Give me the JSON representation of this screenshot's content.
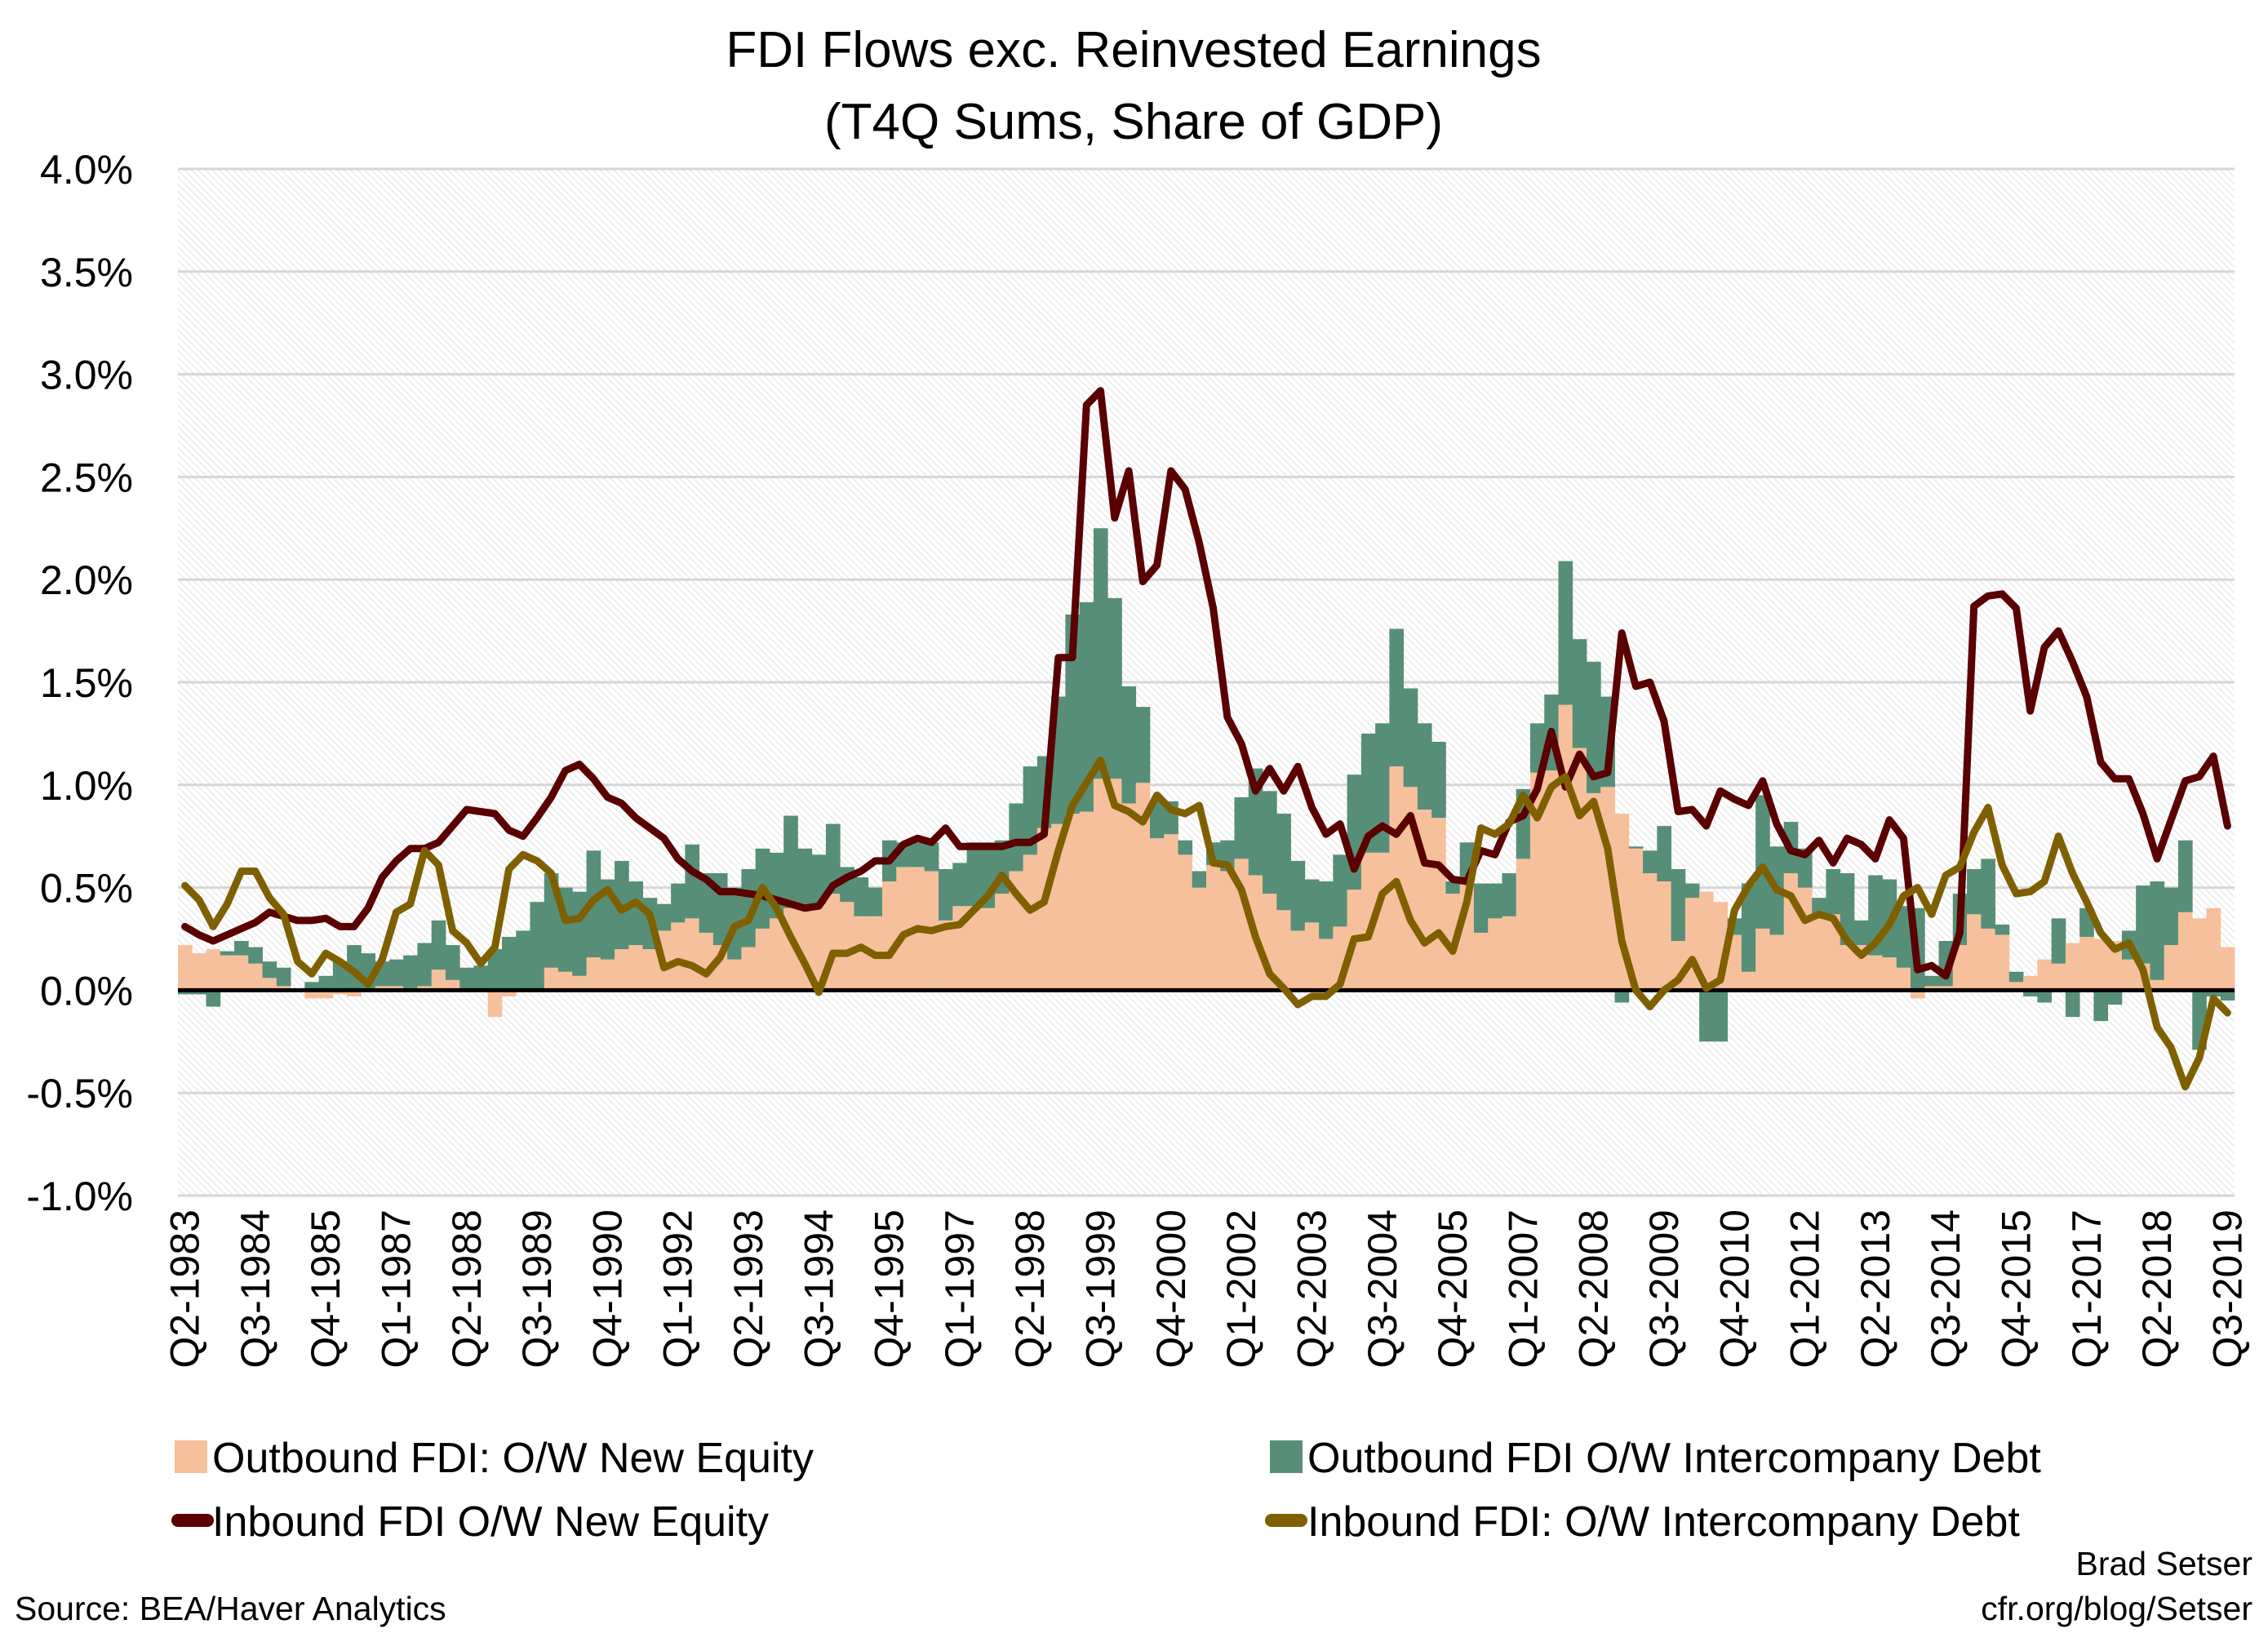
{
  "chart_data": {
    "type": "bar",
    "title": "FDI Flows exc. Reinvested Earnings",
    "subtitle": "(T4Q Sums, Share of GDP)",
    "xlabel": "",
    "ylabel": "",
    "ylim": [
      -1.0,
      4.0
    ],
    "y_unit": "%",
    "y_ticks": [
      "4.0%",
      "3.5%",
      "3.0%",
      "2.5%",
      "2.0%",
      "1.5%",
      "1.0%",
      "0.5%",
      "0.0%",
      "-0.5%",
      "-1.0%"
    ],
    "y_tick_values": [
      4.0,
      3.5,
      3.0,
      2.5,
      2.0,
      1.5,
      1.0,
      0.5,
      0.0,
      -0.5,
      -1.0
    ],
    "grid": true,
    "legend_position": "bottom",
    "x_start": "Q2-1983",
    "x_end": "Q3-2019",
    "x_frequency": "quarterly",
    "x_tick_labels": [
      "Q2-1983",
      "Q3-1984",
      "Q4-1985",
      "Q1-1987",
      "Q2-1988",
      "Q3-1989",
      "Q4-1990",
      "Q1-1992",
      "Q2-1993",
      "Q3-1994",
      "Q4-1995",
      "Q1-1997",
      "Q2-1998",
      "Q3-1999",
      "Q4-2000",
      "Q1-2002",
      "Q2-2003",
      "Q3-2004",
      "Q4-2005",
      "Q1-2007",
      "Q2-2008",
      "Q3-2009",
      "Q4-2010",
      "Q1-2012",
      "Q2-2013",
      "Q3-2014",
      "Q4-2015",
      "Q1-2017",
      "Q2-2018",
      "Q3-2019"
    ],
    "series": [
      {
        "name": "Outbound FDI: O/W New Equity",
        "kind": "stacked-bar",
        "color": "#F7C09C",
        "values": [
          0.22,
          0.18,
          0.2,
          0.17,
          0.17,
          0.13,
          0.06,
          0.02,
          0,
          -0.04,
          -0.04,
          -0.02,
          -0.03,
          0,
          0.02,
          0.02,
          0.01,
          0.02,
          0.1,
          0.05,
          0,
          0,
          -0.13,
          -0.03,
          0,
          0,
          0.11,
          0.09,
          0.07,
          0.16,
          0.15,
          0.2,
          0.22,
          0.2,
          0.29,
          0.33,
          0.35,
          0.28,
          0.22,
          0.15,
          0.21,
          0.3,
          0.35,
          0.4,
          0.4,
          0.42,
          0.47,
          0.43,
          0.36,
          0.36,
          0.53,
          0.6,
          0.6,
          0.58,
          0.34,
          0.41,
          0.41,
          0.4,
          0.47,
          0.58,
          0.66,
          0.79,
          0.81,
          0.86,
          0.87,
          1.03,
          1.03,
          0.91,
          1.01,
          0.74,
          0.76,
          0.66,
          0.5,
          0.61,
          0.58,
          0.64,
          0.56,
          0.47,
          0.39,
          0.29,
          0.33,
          0.25,
          0.31,
          0.49,
          0.67,
          0.67,
          1.09,
          0.99,
          0.88,
          0.84,
          0.47,
          0.53,
          0.28,
          0.35,
          0.36,
          0.64,
          1.06,
          1.07,
          1.39,
          1.18,
          0.96,
          0.99,
          0.86,
          0.69,
          0.57,
          0.53,
          0.24,
          0.45,
          0.48,
          0.43,
          0.27,
          0.09,
          0.3,
          0.27,
          0.57,
          0.5,
          0.37,
          0.37,
          0.22,
          0.22,
          0.17,
          0.16,
          0.11,
          -0.04,
          0.02,
          0.02,
          0.22,
          0.37,
          0.3,
          0.27,
          0.04,
          0.07,
          0.15,
          0.13,
          0.23,
          0.26,
          0.25,
          0.24,
          0.15,
          0.13,
          0.05,
          0.22,
          0.38,
          0.35,
          0.4,
          0.21
        ]
      },
      {
        "name": "Outbound FDI O/W Intercompany Debt",
        "kind": "stacked-bar",
        "color": "#578E78",
        "values": [
          -0.02,
          -0.02,
          -0.08,
          0.02,
          0.07,
          0.08,
          0.08,
          0.09,
          0,
          0.04,
          0.07,
          0.14,
          0.22,
          0.18,
          0.12,
          0.13,
          0.16,
          0.21,
          0.24,
          0.17,
          0.11,
          0.12,
          0.2,
          0.26,
          0.29,
          0.43,
          0.46,
          0.41,
          0.41,
          0.52,
          0.39,
          0.43,
          0.31,
          0.25,
          0.13,
          0.19,
          0.36,
          0.29,
          0.35,
          0.35,
          0.38,
          0.39,
          0.32,
          0.45,
          0.29,
          0.24,
          0.34,
          0.17,
          0.19,
          0.14,
          0.2,
          0.12,
          0.12,
          0.14,
          0.25,
          0.21,
          0.31,
          0.32,
          0.26,
          0.33,
          0.43,
          0.35,
          0.62,
          0.97,
          1.02,
          1.22,
          0.88,
          0.57,
          0.37,
          0.18,
          0.16,
          0.07,
          0.08,
          0.11,
          0.15,
          0.3,
          0.52,
          0.5,
          0.47,
          0.34,
          0.21,
          0.28,
          0.35,
          0.56,
          0.58,
          0.63,
          0.67,
          0.48,
          0.42,
          0.37,
          0.06,
          0.19,
          0.24,
          0.17,
          0.21,
          0.34,
          0.24,
          0.37,
          0.7,
          0.53,
          0.64,
          0.44,
          -0.06,
          0.01,
          0.11,
          0.27,
          0.35,
          0.07,
          -0.25,
          -0.25,
          0.08,
          0.43,
          0.65,
          0.43,
          0.25,
          0.19,
          0.08,
          0.22,
          0.35,
          0.12,
          0.39,
          0.38,
          0.3,
          0.4,
          0.05,
          0.22,
          0.25,
          0.22,
          0.34,
          0.05,
          0.05,
          -0.03,
          -0.06,
          0.22,
          -0.13,
          0.14,
          -0.15,
          -0.07,
          0.14,
          0.38,
          0.48,
          0.28,
          0.35,
          -0.29,
          -0.03,
          -0.05
        ]
      },
      {
        "name": "Inbound FDI O/W New Equity",
        "kind": "line",
        "color": "#5A0000",
        "values": [
          0.31,
          0.27,
          0.24,
          0.27,
          0.3,
          0.33,
          0.38,
          0.36,
          0.34,
          0.34,
          0.35,
          0.31,
          0.31,
          0.4,
          0.55,
          0.63,
          0.69,
          0.69,
          0.72,
          0.8,
          0.88,
          0.87,
          0.86,
          0.78,
          0.75,
          0.84,
          0.94,
          1.07,
          1.1,
          1.03,
          0.94,
          0.91,
          0.84,
          0.79,
          0.74,
          0.64,
          0.58,
          0.54,
          0.48,
          0.48,
          0.47,
          0.46,
          0.44,
          0.42,
          0.4,
          0.41,
          0.51,
          0.55,
          0.58,
          0.63,
          0.63,
          0.71,
          0.74,
          0.72,
          0.79,
          0.7,
          0.7,
          0.7,
          0.7,
          0.72,
          0.72,
          0.76,
          1.62,
          1.62,
          2.85,
          2.92,
          2.3,
          2.53,
          1.99,
          2.07,
          2.53,
          2.44,
          2.18,
          1.86,
          1.33,
          1.2,
          0.97,
          1.08,
          0.97,
          1.09,
          0.89,
          0.76,
          0.81,
          0.59,
          0.75,
          0.8,
          0.76,
          0.85,
          0.62,
          0.61,
          0.54,
          0.53,
          0.68,
          0.66,
          0.82,
          0.85,
          0.98,
          1.26,
          0.99,
          1.15,
          1.04,
          1.06,
          1.74,
          1.48,
          1.5,
          1.31,
          0.87,
          0.88,
          0.8,
          0.97,
          0.93,
          0.9,
          1.02,
          0.81,
          0.68,
          0.66,
          0.73,
          0.62,
          0.74,
          0.71,
          0.64,
          0.83,
          0.74,
          0.1,
          0.12,
          0.07,
          0.28,
          1.87,
          1.92,
          1.93,
          1.86,
          1.36,
          1.67,
          1.75,
          1.6,
          1.43,
          1.11,
          1.03,
          1.03,
          0.86,
          0.64,
          0.83,
          1.02,
          1.04,
          1.14,
          0.8
        ]
      },
      {
        "name": "Inbound FDI: O/W Intercompany Debt",
        "kind": "line",
        "color": "#7F6000",
        "values": [
          0.51,
          0.44,
          0.31,
          0.42,
          0.58,
          0.58,
          0.45,
          0.37,
          0.14,
          0.08,
          0.18,
          0.14,
          0.09,
          0.03,
          0.15,
          0.38,
          0.42,
          0.68,
          0.61,
          0.29,
          0.23,
          0.13,
          0.21,
          0.59,
          0.66,
          0.63,
          0.57,
          0.34,
          0.35,
          0.44,
          0.49,
          0.39,
          0.43,
          0.37,
          0.11,
          0.14,
          0.12,
          0.08,
          0.16,
          0.31,
          0.34,
          0.5,
          0.4,
          0.26,
          0.13,
          -0.01,
          0.18,
          0.18,
          0.21,
          0.17,
          0.17,
          0.27,
          0.3,
          0.29,
          0.31,
          0.32,
          0.39,
          0.46,
          0.56,
          0.47,
          0.39,
          0.43,
          0.68,
          0.9,
          1.01,
          1.12,
          0.9,
          0.87,
          0.82,
          0.95,
          0.88,
          0.86,
          0.9,
          0.62,
          0.61,
          0.49,
          0.26,
          0.08,
          0.01,
          -0.07,
          -0.03,
          -0.03,
          0.03,
          0.25,
          0.26,
          0.47,
          0.53,
          0.34,
          0.23,
          0.28,
          0.19,
          0.43,
          0.79,
          0.76,
          0.81,
          0.95,
          0.84,
          0.99,
          1.04,
          0.85,
          0.92,
          0.69,
          0.24,
          0.0,
          -0.08,
          0.0,
          0.05,
          0.15,
          0.01,
          0.05,
          0.39,
          0.51,
          0.6,
          0.49,
          0.46,
          0.34,
          0.37,
          0.35,
          0.24,
          0.17,
          0.23,
          0.32,
          0.46,
          0.5,
          0.37,
          0.56,
          0.6,
          0.77,
          0.89,
          0.61,
          0.47,
          0.48,
          0.53,
          0.75,
          0.57,
          0.43,
          0.28,
          0.2,
          0.23,
          0.1,
          -0.18,
          -0.28,
          -0.47,
          -0.33,
          -0.04,
          -0.11
        ]
      }
    ]
  },
  "legend": {
    "items": [
      {
        "label": "Outbound FDI: O/W New Equity",
        "icon": "square-swatch",
        "color": "#F7C09C"
      },
      {
        "label": "Outbound FDI O/W Intercompany Debt",
        "icon": "square-swatch",
        "color": "#578E78"
      },
      {
        "label": "Inbound FDI O/W New Equity",
        "icon": "line-swatch",
        "color": "#5A0000"
      },
      {
        "label": "Inbound FDI: O/W Intercompany Debt",
        "icon": "line-swatch",
        "color": "#7F6000"
      }
    ]
  },
  "footer": {
    "source": "Source: BEA/Haver Analytics",
    "author": "Brad Setser",
    "site": "cfr.org/blog/Setser"
  }
}
